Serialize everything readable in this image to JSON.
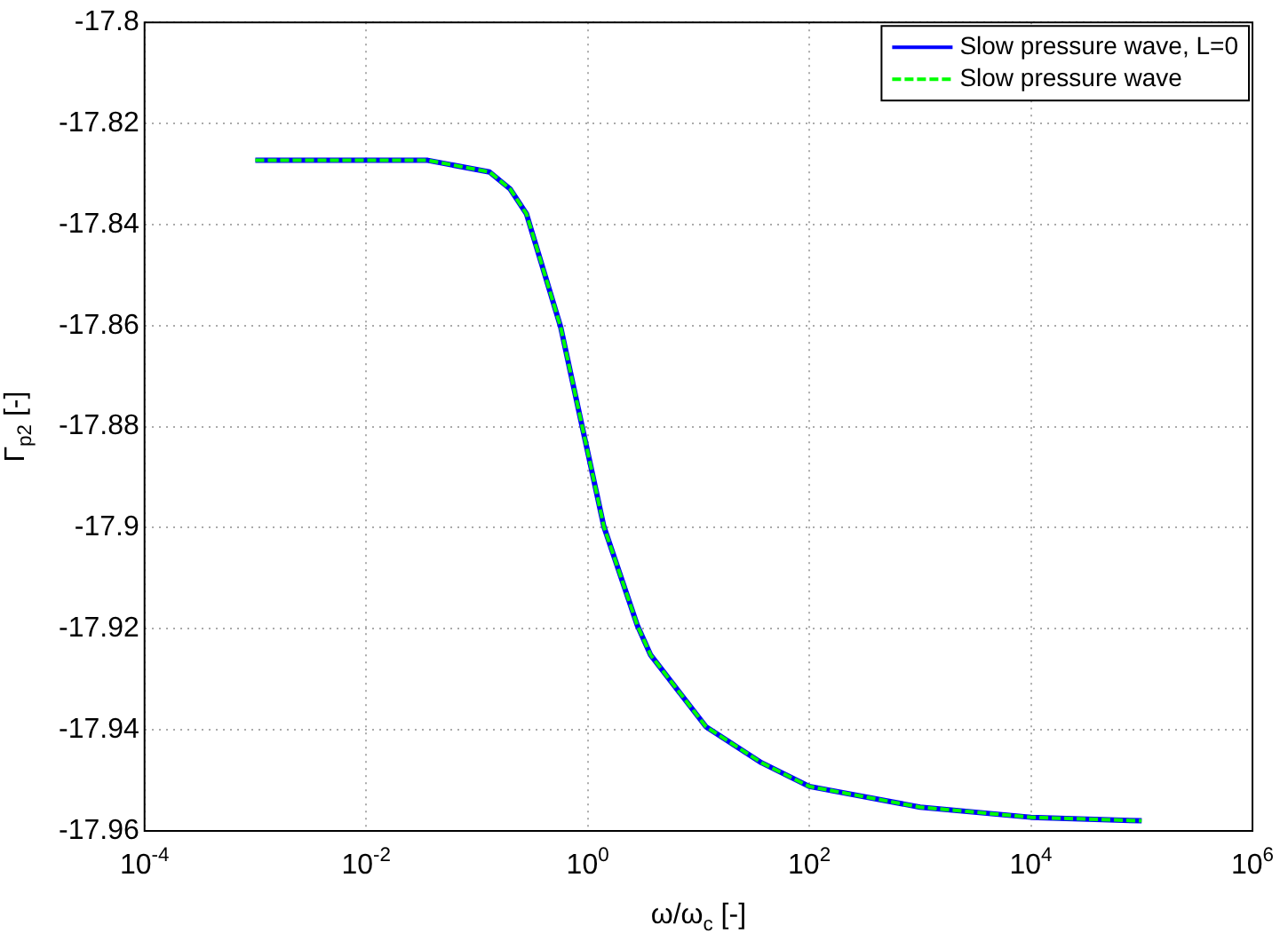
{
  "chart_data": {
    "type": "line",
    "xlabel": "ω/ω$_{c}$ [-]",
    "ylabel": "Γ$_{p2}$ [-]",
    "log": "x",
    "x": [
      0.001,
      0.01,
      0.036,
      0.13,
      0.2,
      0.28,
      0.57,
      0.89,
      1.4,
      2.8,
      3.7,
      11.7,
      37,
      100,
      1000,
      10000,
      100000
    ],
    "series": [
      {
        "name": "Slow pressure wave, L=0",
        "color": "#0000ff",
        "line_style": "solid",
        "values": [
          -17.8273,
          -17.8273,
          -17.8273,
          -17.8296,
          -17.833,
          -17.8379,
          -17.8603,
          -17.8799,
          -17.8998,
          -17.9193,
          -17.9252,
          -17.9394,
          -17.9465,
          -17.9512,
          -17.9553,
          -17.9573,
          -17.958
        ]
      },
      {
        "name": "Slow pressure wave",
        "color": "#00ff00",
        "line_style": "dashed",
        "values": [
          -17.8273,
          -17.8273,
          -17.8273,
          -17.8296,
          -17.833,
          -17.8379,
          -17.8603,
          -17.8799,
          -17.8998,
          -17.9193,
          -17.9252,
          -17.9394,
          -17.9465,
          -17.9512,
          -17.9553,
          -17.9573,
          -17.958
        ]
      }
    ],
    "xlim": [
      0.0001,
      1000000
    ],
    "xticks": [
      {
        "value": 0.0001,
        "label": "10$^{-4}$"
      },
      {
        "value": 0.01,
        "label": "10$^{-2}$"
      },
      {
        "value": 1,
        "label": "10$^{0}$"
      },
      {
        "value": 100,
        "label": "10$^{2}$"
      },
      {
        "value": 10000,
        "label": "10$^{4}$"
      },
      {
        "value": 1000000,
        "label": "10$^{6}$"
      }
    ],
    "ylim": [
      -17.96,
      -17.8
    ],
    "yticks": [
      -17.96,
      -17.94,
      -17.92,
      -17.9,
      -17.88,
      -17.86,
      -17.84,
      -17.82,
      -17.8
    ],
    "grid": true,
    "legend": "top right",
    "marker": "none"
  }
}
